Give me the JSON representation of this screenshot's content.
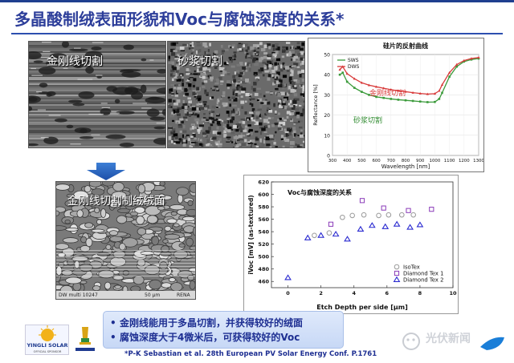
{
  "slide": {
    "title": "多晶酸制绒表面形貌和Voc与腐蚀深度的关系*",
    "citation": "*P-K Sebastian et al. 28th European PV Solar Energy Conf. P.1761",
    "watermark": "光伏新闻"
  },
  "images": {
    "diamond_wire_label": "金刚线切割",
    "slurry_label": "砂浆切割",
    "textured_label": "金刚线切割制绒绒面",
    "sem_info_left": "DW multi 10247",
    "sem_info_scale": "50 µm",
    "sem_info_right": "RENA"
  },
  "bullets": [
    "金刚线能用于多晶切割，并获得较好的绒面",
    "腐蚀深度大于4微米后，可获得较好的Voc"
  ],
  "logo": {
    "name": "YINGLI SOLAR",
    "sub": "OFFICIAL SPONSOR"
  },
  "colors": {
    "title": "#2d3e9a",
    "sws": "#3a9a3a",
    "dws": "#d83a3a",
    "isotex": "#999999",
    "dt1": "#8a3ab8",
    "dt2": "#2a2ad0"
  },
  "chart_data": [
    {
      "type": "line",
      "title": "硅片的反射曲线",
      "xlabel": "Wavelength [nm]",
      "ylabel": "Reflectance [%]",
      "xlim": [
        300,
        1300
      ],
      "ylim": [
        0,
        50
      ],
      "xticks": [
        300,
        400,
        500,
        600,
        700,
        800,
        900,
        1000,
        1100,
        1200,
        1300
      ],
      "yticks": [
        0,
        10,
        20,
        30,
        40,
        50
      ],
      "legend_placement": "top-left",
      "annotations": [
        "金刚线切割",
        "砂浆切割"
      ],
      "series": [
        {
          "name": "SWS",
          "color": "#3a9a3a",
          "x": [
            350,
            370,
            400,
            450,
            500,
            550,
            600,
            650,
            700,
            750,
            800,
            850,
            900,
            950,
            1000,
            1030,
            1050,
            1100,
            1150,
            1200,
            1250,
            1300
          ],
          "y": [
            40,
            41,
            36.5,
            33.5,
            31.5,
            30,
            29,
            28.5,
            28,
            27.6,
            27.3,
            27,
            26.7,
            26.4,
            26.5,
            28,
            31,
            39,
            44,
            46.5,
            47.5,
            48
          ]
        },
        {
          "name": "DWS",
          "color": "#d83a3a",
          "x": [
            350,
            370,
            400,
            450,
            500,
            550,
            600,
            650,
            700,
            750,
            800,
            850,
            900,
            950,
            1000,
            1030,
            1050,
            1100,
            1150,
            1200,
            1250,
            1300
          ],
          "y": [
            42.5,
            44,
            40.5,
            38,
            36,
            34.8,
            34,
            33.3,
            32.6,
            32,
            31.6,
            31.1,
            30.7,
            30.4,
            30.6,
            32,
            35,
            41,
            45,
            47,
            48,
            48.5
          ]
        }
      ]
    },
    {
      "type": "scatter",
      "title": "Voc与腐蚀深度的关系",
      "xlabel": "Etch Depth per side [µm]",
      "ylabel": "iVoc [mV] (as-textured)",
      "xlim": [
        -1,
        10
      ],
      "ylim": [
        450,
        620
      ],
      "xticks": [
        0,
        2,
        4,
        6,
        8,
        10
      ],
      "yticks": [
        460,
        480,
        500,
        520,
        540,
        560,
        580,
        600,
        620
      ],
      "legend_placement": "bottom-right",
      "series": [
        {
          "name": "IsoTex",
          "marker": "circle",
          "color": "#999999",
          "x": [
            1.6,
            2.5,
            3.3,
            3.9,
            4.6,
            5.5,
            6.1,
            6.9,
            7.6
          ],
          "y": [
            534,
            538,
            563,
            566,
            567,
            566,
            567,
            567,
            567
          ]
        },
        {
          "name": "Diamond Tex 1",
          "marker": "square",
          "color": "#8a3ab8",
          "x": [
            2.6,
            4.5,
            5.8,
            7.3,
            8.7
          ],
          "y": [
            552,
            590,
            578,
            574,
            576
          ]
        },
        {
          "name": "Diamond Tex 2",
          "marker": "triangle",
          "color": "#2a2ad0",
          "x": [
            0,
            1.2,
            2.0,
            2.9,
            3.6,
            4.4,
            5.1,
            5.9,
            6.6,
            7.4,
            8.0
          ],
          "y": [
            466,
            530,
            534,
            536,
            528,
            544,
            550,
            548,
            552,
            547,
            551
          ]
        }
      ]
    }
  ]
}
